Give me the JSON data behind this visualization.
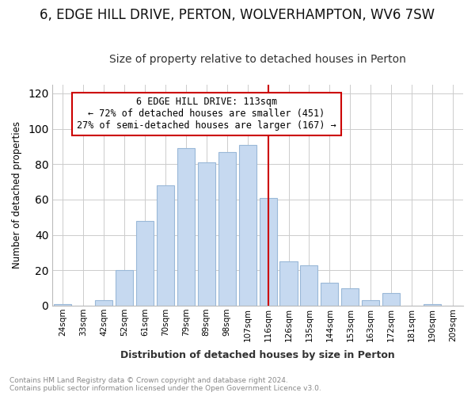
{
  "title": "6, EDGE HILL DRIVE, PERTON, WOLVERHAMPTON, WV6 7SW",
  "subtitle": "Size of property relative to detached houses in Perton",
  "xlabel": "Distribution of detached houses by size in Perton",
  "ylabel": "Number of detached properties",
  "footer": "Contains HM Land Registry data © Crown copyright and database right 2024.\nContains public sector information licensed under the Open Government Licence v3.0.",
  "bin_labels": [
    "24sqm",
    "33sqm",
    "42sqm",
    "52sqm",
    "61sqm",
    "70sqm",
    "79sqm",
    "89sqm",
    "98sqm",
    "107sqm",
    "116sqm",
    "126sqm",
    "135sqm",
    "144sqm",
    "153sqm",
    "163sqm",
    "172sqm",
    "181sqm",
    "190sqm",
    "209sqm"
  ],
  "bar_values": [
    1,
    0,
    3,
    20,
    48,
    68,
    89,
    81,
    87,
    91,
    61,
    25,
    23,
    13,
    10,
    3,
    7,
    0,
    1,
    0
  ],
  "bar_color": "#c6d9f0",
  "bar_edge_color": "#9ab8d8",
  "property_bin_index": 10,
  "vline_color": "#cc0000",
  "annotation_text": "6 EDGE HILL DRIVE: 113sqm\n← 72% of detached houses are smaller (451)\n27% of semi-detached houses are larger (167) →",
  "annotation_box_color": "#ffffff",
  "annotation_box_edge": "#cc0000",
  "ylim": [
    0,
    125
  ],
  "yticks": [
    0,
    20,
    40,
    60,
    80,
    100,
    120
  ],
  "title_fontsize": 12,
  "subtitle_fontsize": 10,
  "background_color": "#ffffff",
  "grid_color": "#cccccc"
}
